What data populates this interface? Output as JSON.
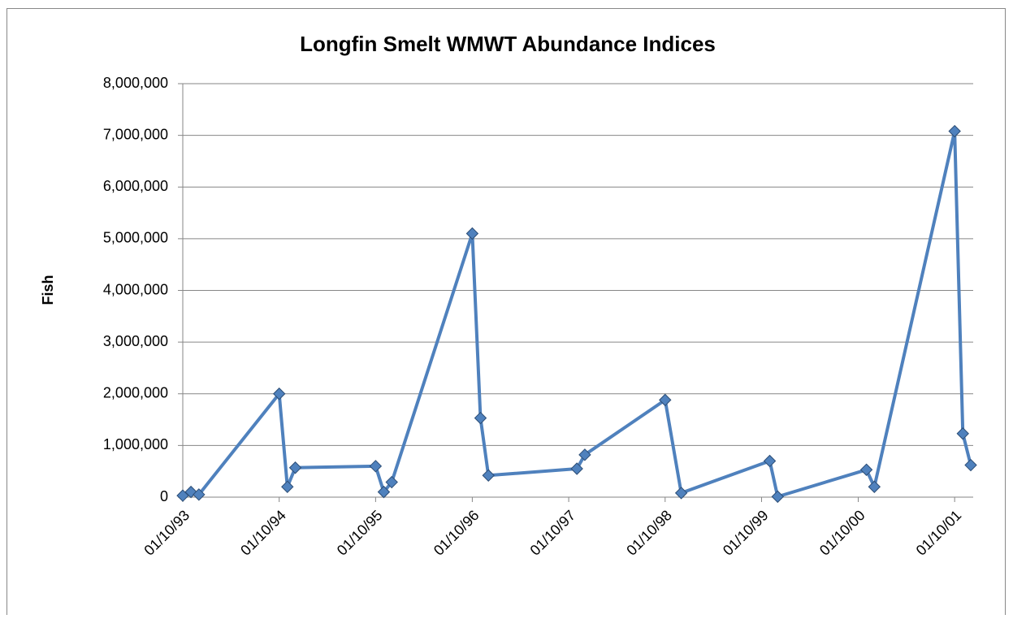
{
  "chart_data": {
    "type": "line",
    "title": "Longfin Smelt WMWT  Abundance Indices",
    "ylabel": "Fish",
    "x": [
      "1993-10-01",
      "1993-11-01",
      "1993-12-01",
      "1994-10-01",
      "1994-11-01",
      "1994-12-01",
      "1995-10-01",
      "1995-11-01",
      "1995-12-01",
      "1996-10-01",
      "1996-11-01",
      "1996-12-01",
      "1997-11-01",
      "1997-12-01",
      "1998-10-01",
      "1998-12-01",
      "1999-11-01",
      "1999-12-01",
      "2000-11-01",
      "2000-12-01",
      "2001-10-01",
      "2001-11-01",
      "2001-12-01"
    ],
    "series": [
      {
        "name": "Fish",
        "color": "#4f81bd",
        "values": [
          30000,
          100000,
          50000,
          2000000,
          200000,
          570000,
          600000,
          100000,
          290000,
          5100000,
          1530000,
          420000,
          550000,
          820000,
          1880000,
          80000,
          700000,
          10000,
          530000,
          200000,
          7080000,
          1230000,
          620000
        ]
      }
    ],
    "xlim": [
      "1993-10-01",
      "2001-12-01"
    ],
    "xticks": [
      {
        "value": "1993-10-01",
        "label": "01/10/93"
      },
      {
        "value": "1994-10-01",
        "label": "01/10/94"
      },
      {
        "value": "1995-10-01",
        "label": "01/10/95"
      },
      {
        "value": "1996-10-01",
        "label": "01/10/96"
      },
      {
        "value": "1997-10-01",
        "label": "01/10/97"
      },
      {
        "value": "1998-10-01",
        "label": "01/10/98"
      },
      {
        "value": "1999-10-01",
        "label": "01/10/99"
      },
      {
        "value": "2000-10-01",
        "label": "01/10/00"
      },
      {
        "value": "2001-10-01",
        "label": "01/10/01"
      }
    ],
    "ylim": [
      0,
      8000000
    ],
    "yticks": [
      0,
      {
        "value": 1000000,
        "label": "1,000,000"
      },
      {
        "value": 2000000,
        "label": "2,000,000"
      },
      {
        "value": 3000000,
        "label": "3,000,000"
      },
      {
        "value": 4000000,
        "label": "4,000,000"
      },
      {
        "value": 5000000,
        "label": "5,000,000"
      },
      {
        "value": 6000000,
        "label": "6,000,000"
      },
      {
        "value": 7000000,
        "label": "7,000,000"
      },
      {
        "value": 8000000,
        "label": "8,000,000"
      }
    ],
    "grid": true,
    "marker": "diamond"
  }
}
